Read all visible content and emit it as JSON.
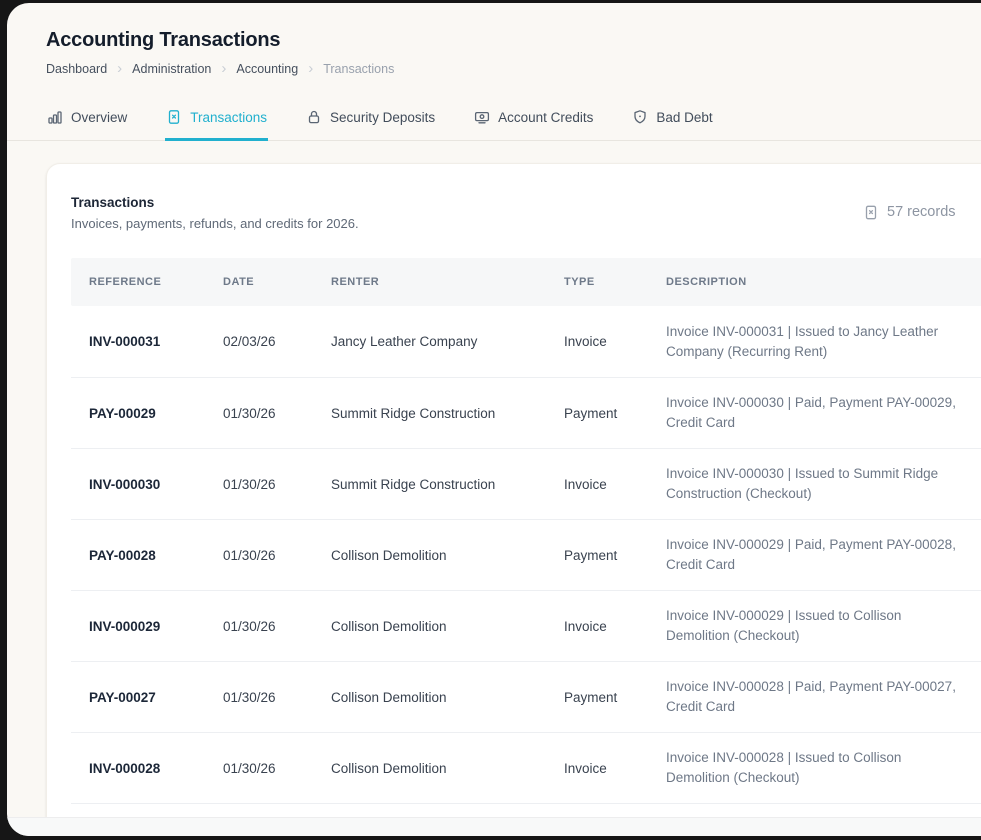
{
  "colors": {
    "accent": "#21b0ce",
    "page_background": "#faf8f4",
    "card_background": "#ffffff",
    "title_text": "#141d2b",
    "muted_text": "#6e7887"
  },
  "page": {
    "title": "Accounting Transactions",
    "breadcrumb": [
      "Dashboard",
      "Administration",
      "Accounting",
      "Transactions"
    ],
    "tabs": [
      {
        "id": "overview",
        "label": "Overview",
        "icon": "bar-chart-icon",
        "active": false
      },
      {
        "id": "transactions",
        "label": "Transactions",
        "icon": "receipt-icon",
        "active": true
      },
      {
        "id": "security-deposits",
        "label": "Security Deposits",
        "icon": "lock-icon",
        "active": false
      },
      {
        "id": "account-credits",
        "label": "Account Credits",
        "icon": "banknote-icon",
        "active": false
      },
      {
        "id": "bad-debt",
        "label": "Bad Debt",
        "icon": "shield-icon",
        "active": false
      }
    ]
  },
  "panel": {
    "title": "Transactions",
    "subtitle": "Invoices, payments, refunds, and credits for 2026.",
    "records_label": "57 records"
  },
  "table": {
    "columns": [
      "Reference",
      "Date",
      "Renter",
      "Type",
      "Description"
    ],
    "rows": [
      {
        "reference": "INV-000031",
        "date": "02/03/26",
        "renter": "Jancy Leather Company",
        "type": "Invoice",
        "description": "Invoice INV-000031 | Issued to Jancy Leather Company (Recurring Rent)"
      },
      {
        "reference": "PAY-00029",
        "date": "01/30/26",
        "renter": "Summit Ridge Construction",
        "type": "Payment",
        "description": "Invoice INV-000030 | Paid, Payment PAY-00029, Credit Card"
      },
      {
        "reference": "INV-000030",
        "date": "01/30/26",
        "renter": "Summit Ridge Construction",
        "type": "Invoice",
        "description": "Invoice INV-000030 | Issued to Summit Ridge Construction (Checkout)"
      },
      {
        "reference": "PAY-00028",
        "date": "01/30/26",
        "renter": "Collison Demolition",
        "type": "Payment",
        "description": "Invoice INV-000029 | Paid, Payment PAY-00028, Credit Card"
      },
      {
        "reference": "INV-000029",
        "date": "01/30/26",
        "renter": "Collison Demolition",
        "type": "Invoice",
        "description": "Invoice INV-000029 | Issued to Collison Demolition (Checkout)"
      },
      {
        "reference": "PAY-00027",
        "date": "01/30/26",
        "renter": "Collison Demolition",
        "type": "Payment",
        "description": "Invoice INV-000028 | Paid, Payment PAY-00027, Credit Card"
      },
      {
        "reference": "INV-000028",
        "date": "01/30/26",
        "renter": "Collison Demolition",
        "type": "Invoice",
        "description": "Invoice INV-000028 | Issued to Collison Demolition (Checkout)"
      }
    ]
  }
}
